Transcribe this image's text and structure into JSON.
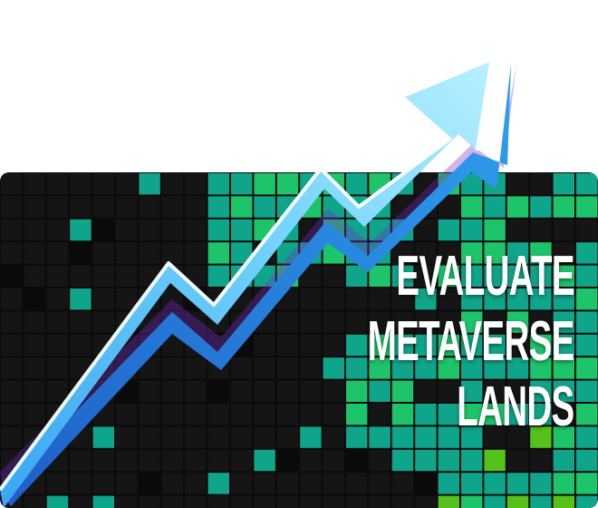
{
  "headline": {
    "line1": "EVALUATE",
    "line2": "METAVERSE",
    "line3": "LANDS"
  },
  "colors": {
    "background": "#ffffff",
    "grid_dark": "#151515",
    "grid_line": "#060606",
    "land_teal": "#0fa58b",
    "land_green": "#1ec46a",
    "land_lime": "#55c21c",
    "arrow_light": "#c9f4ff",
    "arrow_mid": "#5fc8f8",
    "arrow_dark": "#2a7fe0",
    "text": "#ffffff"
  },
  "icons": [
    "trend-up-arrow"
  ]
}
